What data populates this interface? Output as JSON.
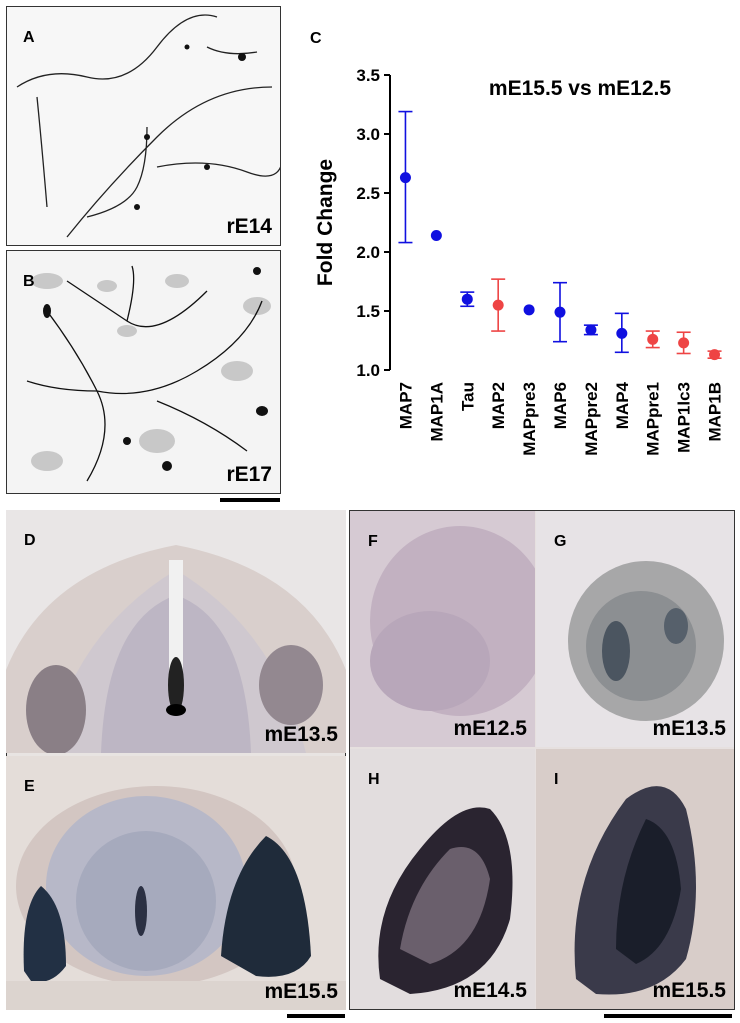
{
  "panels": {
    "a": {
      "letter": "A",
      "stage": "rE14"
    },
    "b": {
      "letter": "B",
      "stage": "rE17"
    },
    "c": {
      "letter": "C"
    },
    "d": {
      "letter": "D",
      "stage": "mE13.5"
    },
    "e": {
      "letter": "E",
      "stage": "mE15.5"
    },
    "f": {
      "letter": "F",
      "stage": "mE12.5"
    },
    "g": {
      "letter": "G",
      "stage": "mE13.5"
    },
    "h": {
      "letter": "H",
      "stage": "mE14.5"
    },
    "i": {
      "letter": "I",
      "stage": "mE15.5"
    }
  },
  "colors": {
    "series_blue": "#1010e0",
    "series_red": "#ee4444"
  },
  "chart_data": {
    "type": "scatter",
    "title": "mE15.5 vs mE12.5",
    "xlabel": "",
    "ylabel": "Fold Change",
    "ylim": [
      1.0,
      3.5
    ],
    "yticks": [
      "1.0",
      "1.5",
      "2.0",
      "2.5",
      "3.0",
      "3.5"
    ],
    "grid": false,
    "categories": [
      "MAP7",
      "MAP1A",
      "Tau",
      "MAP2",
      "MAPpre3",
      "MAP6",
      "MAPpre2",
      "MAP4",
      "MAPpre1",
      "MAP1lc3",
      "MAP1B"
    ],
    "points": [
      {
        "category": "MAP7",
        "value": 2.63,
        "err_low": 2.08,
        "err_high": 3.19,
        "color": "blue"
      },
      {
        "category": "MAP1A",
        "value": 2.14,
        "err_low": 2.14,
        "err_high": 2.14,
        "color": "blue"
      },
      {
        "category": "Tau",
        "value": 1.6,
        "err_low": 1.54,
        "err_high": 1.66,
        "color": "blue"
      },
      {
        "category": "MAP2",
        "value": 1.55,
        "err_low": 1.33,
        "err_high": 1.77,
        "color": "red"
      },
      {
        "category": "MAPpre3",
        "value": 1.51,
        "err_low": 1.51,
        "err_high": 1.51,
        "color": "blue"
      },
      {
        "category": "MAP6",
        "value": 1.49,
        "err_low": 1.24,
        "err_high": 1.74,
        "color": "blue"
      },
      {
        "category": "MAPpre2",
        "value": 1.34,
        "err_low": 1.3,
        "err_high": 1.38,
        "color": "blue"
      },
      {
        "category": "MAP4",
        "value": 1.31,
        "err_low": 1.15,
        "err_high": 1.48,
        "color": "blue"
      },
      {
        "category": "MAPpre1",
        "value": 1.26,
        "err_low": 1.19,
        "err_high": 1.33,
        "color": "red"
      },
      {
        "category": "MAP1lc3",
        "value": 1.23,
        "err_low": 1.14,
        "err_high": 1.32,
        "color": "red"
      },
      {
        "category": "MAP1B",
        "value": 1.13,
        "err_low": 1.1,
        "err_high": 1.16,
        "color": "red"
      }
    ]
  }
}
